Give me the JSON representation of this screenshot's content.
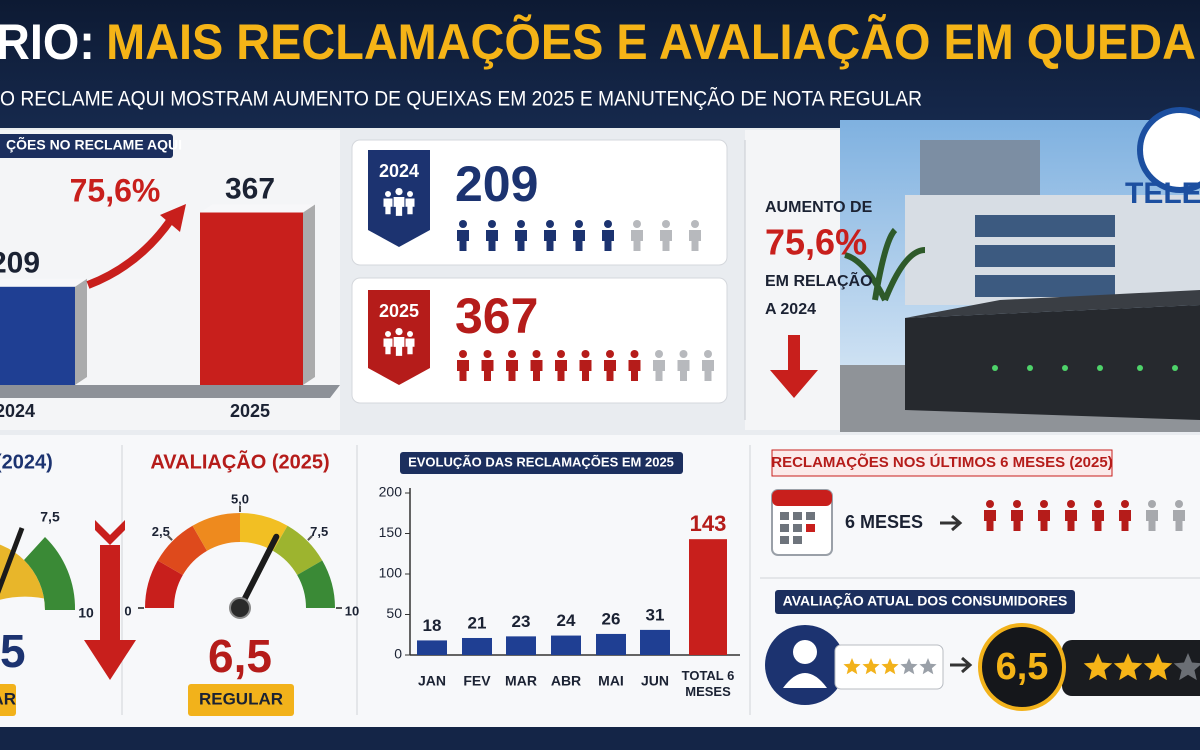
{
  "header": {
    "title_lead": "RIO:",
    "title": "MAIS RECLAMAÇÕES E AVALIAÇÃO EM QUEDA",
    "subtitle": "O RECLAME AQUI MOSTRAM AUMENTO DE QUEIXAS EM 2025 E MANUTENÇÃO DE NOTA REGULAR"
  },
  "comparison": {
    "label": "ÇÕES NO RECLAME AQUI",
    "categories": [
      "2024",
      "2025"
    ],
    "values": [
      209,
      367
    ],
    "colors": [
      "#1f3f93",
      "#c81f1c"
    ],
    "change_label": "75,6%"
  },
  "cards": [
    {
      "year": "2024",
      "value": 209,
      "color": "#1c3370"
    },
    {
      "year": "2025",
      "value": 367,
      "color": "#b51c1a"
    }
  ],
  "increase": {
    "lines": [
      "AUMENTO DE",
      "75,6%",
      "EM RELAÇÃO",
      "A 2024"
    ]
  },
  "photo_sign": "TELE",
  "gauge_2024": {
    "title": "(2024)",
    "tick_labels": [
      "7,5",
      "10"
    ],
    "value_text": "5",
    "rating": "LAR"
  },
  "gauge_2025": {
    "title": "AVALIAÇÃO (2025)",
    "ticks": [
      0,
      {
        "value": 2.5,
        "label": "2,5"
      },
      {
        "value": 5,
        "label": "5,0"
      },
      {
        "value": 7.5,
        "label": "7,5"
      },
      10
    ],
    "value": 6.5,
    "value_label": "6,5",
    "rating": "REGULAR"
  },
  "monthly": {
    "type": "bar",
    "title": "EVOLUÇÃO DAS RECLAMAÇÕES EM 2025",
    "categories": [
      "JAN",
      "FEV",
      "MAR",
      "ABR",
      "MAI",
      "JUN",
      "TOTAL 6 MESES"
    ],
    "values": [
      18,
      21,
      23,
      24,
      26,
      31,
      143
    ],
    "colors": [
      "#1f3f93",
      "#1f3f93",
      "#1f3f93",
      "#1f3f93",
      "#1f3f93",
      "#1f3f93",
      "#c81f1c"
    ],
    "ylim": [
      0,
      200
    ],
    "yticks": [
      0,
      50,
      100,
      150,
      200
    ]
  },
  "recent": {
    "title": "RECLAMAÇÕES NOS ÚLTIMOS 6 MESES (2025)",
    "period": "6 MESES"
  },
  "rating": {
    "title": "AVALIAÇÃO ATUAL DOS CONSUMIDORES",
    "value": 6.5,
    "value_label": "6,5"
  }
}
